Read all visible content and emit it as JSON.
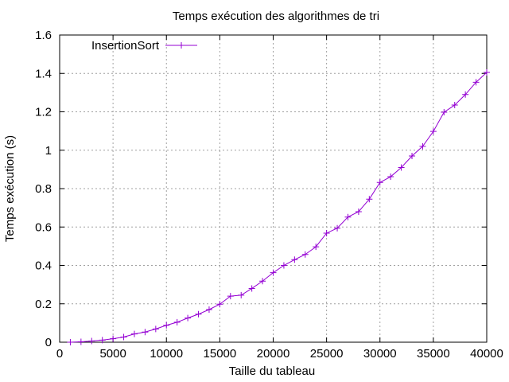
{
  "chart_data": {
    "type": "line",
    "title": "Temps exécution des algorithmes de tri",
    "xlabel": "Taille du tableau",
    "ylabel": "Temps exécution (s)",
    "xlim": [
      0,
      40000
    ],
    "ylim": [
      0,
      1.6
    ],
    "xticks": [
      0,
      5000,
      10000,
      15000,
      20000,
      25000,
      30000,
      35000,
      40000
    ],
    "xtick_labels": [
      "0",
      "5000",
      "10000",
      "15000",
      "20000",
      "25000",
      "30000",
      "35000",
      "40000"
    ],
    "yticks": [
      0,
      0.2,
      0.4,
      0.6,
      0.8,
      1.0,
      1.2,
      1.4,
      1.6
    ],
    "ytick_labels": [
      "0",
      "0.2",
      "0.4",
      "0.6",
      "0.8",
      "1",
      "1.2",
      "1.4",
      "1.6"
    ],
    "grid": true,
    "legend_position": "top-left",
    "series": [
      {
        "name": "InsertionSort",
        "color": "#9400d3",
        "marker": "plus",
        "x": [
          1000,
          2000,
          3000,
          4000,
          5000,
          6000,
          7000,
          8000,
          9000,
          10000,
          11000,
          12000,
          13000,
          14000,
          15000,
          16000,
          17000,
          18000,
          19000,
          20000,
          21000,
          22000,
          23000,
          24000,
          25000,
          26000,
          27000,
          28000,
          29000,
          30000,
          31000,
          32000,
          33000,
          34000,
          35000,
          36000,
          37000,
          38000,
          39000,
          40000
        ],
        "y": [
          0.0,
          0.002,
          0.006,
          0.011,
          0.018,
          0.027,
          0.043,
          0.053,
          0.069,
          0.088,
          0.104,
          0.126,
          0.146,
          0.17,
          0.198,
          0.24,
          0.245,
          0.28,
          0.318,
          0.362,
          0.4,
          0.43,
          0.457,
          0.497,
          0.568,
          0.594,
          0.652,
          0.68,
          0.745,
          0.832,
          0.862,
          0.91,
          0.97,
          1.02,
          1.098,
          1.198,
          1.235,
          1.29,
          1.354,
          1.405
        ]
      }
    ]
  }
}
